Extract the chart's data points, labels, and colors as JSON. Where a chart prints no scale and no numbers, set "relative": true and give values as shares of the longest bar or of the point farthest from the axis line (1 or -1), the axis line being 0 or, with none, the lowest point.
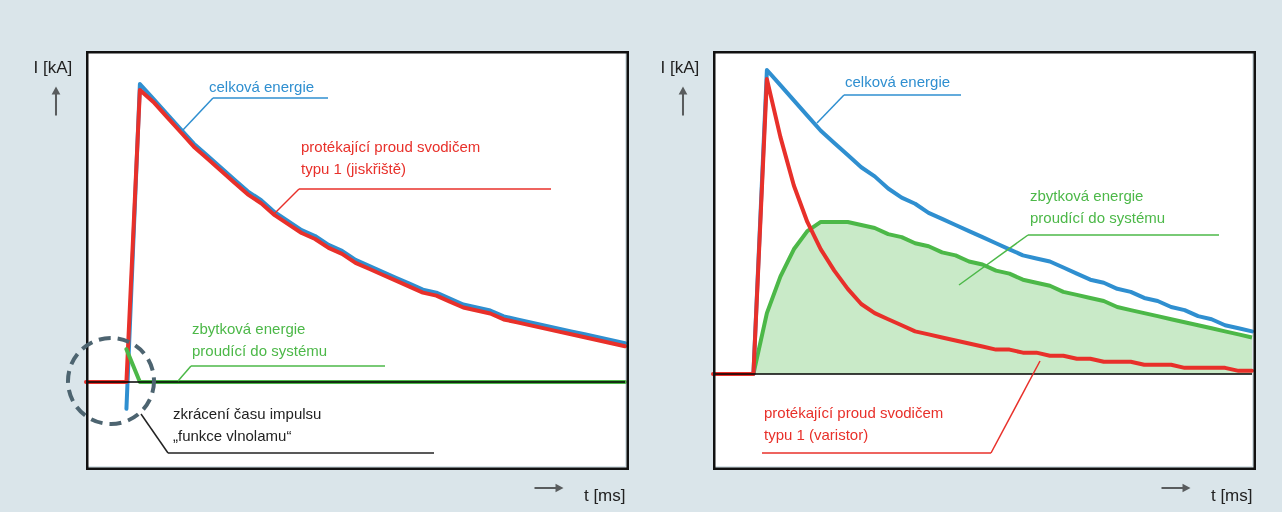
{
  "chart_data": [
    {
      "type": "line",
      "relative": true,
      "xlabel": "t [ms]",
      "ylabel": "I [kA]",
      "categories": [
        null,
        null,
        null,
        null,
        null,
        null,
        null,
        null,
        null,
        null,
        null,
        null,
        null,
        null,
        null,
        null,
        null,
        null,
        null,
        null,
        null,
        null,
        null,
        null,
        null,
        null,
        null,
        null,
        null,
        null,
        null,
        null,
        null,
        null,
        null,
        null,
        null,
        null,
        null,
        null,
        null
      ],
      "series": [
        {
          "name": "celková energie",
          "color": "#2f8fd0",
          "values": [
            null,
            null,
            null,
            -0.09,
            1.0,
            0.95,
            0.9,
            0.85,
            0.8,
            0.76,
            0.72,
            0.68,
            0.64,
            0.61,
            0.57,
            0.54,
            0.51,
            0.49,
            0.46,
            0.44,
            0.41,
            0.39,
            0.37,
            0.35,
            0.33,
            0.31,
            0.3,
            0.28,
            0.26,
            0.25,
            0.24,
            0.22,
            0.21,
            0.2,
            0.19,
            0.18,
            0.17,
            0.16,
            0.15,
            0.14,
            0.13
          ]
        },
        {
          "name": "protékající proud svodičem\ntypu 1 (jiskřiště)",
          "color": "#e8302a",
          "values": [
            0,
            0,
            0,
            0,
            0.98,
            0.94,
            0.89,
            0.84,
            0.79,
            0.75,
            0.71,
            0.67,
            0.63,
            0.6,
            0.56,
            0.53,
            0.5,
            0.48,
            0.45,
            0.43,
            0.4,
            0.38,
            0.36,
            0.34,
            0.32,
            0.3,
            0.29,
            0.27,
            0.25,
            0.24,
            0.23,
            0.21,
            0.2,
            0.19,
            0.18,
            0.17,
            0.16,
            0.15,
            0.14,
            0.13,
            0.12
          ]
        },
        {
          "name": "zbytková energie\nproudící do systému",
          "color": "#4cb848",
          "values": [
            null,
            null,
            null,
            0.11,
            0,
            0,
            0,
            0,
            0,
            0,
            0,
            0,
            0,
            0,
            0,
            0,
            0,
            0,
            0,
            0,
            0,
            0,
            0,
            0,
            0,
            0,
            0,
            0,
            0,
            0,
            0,
            0,
            0,
            0,
            0,
            0,
            0,
            0,
            0,
            0,
            0
          ]
        }
      ],
      "ref_lines": [
        {
          "axis": "y",
          "value": 0,
          "color": "#000000"
        }
      ],
      "annotations": [
        "zkrácení času impulsu\n„funkce vlnolamu“"
      ]
    },
    {
      "type": "line",
      "relative": true,
      "xlabel": "t [ms]",
      "ylabel": "I [kA]",
      "categories": [
        null,
        null,
        null,
        null,
        null,
        null,
        null,
        null,
        null,
        null,
        null,
        null,
        null,
        null,
        null,
        null,
        null,
        null,
        null,
        null,
        null,
        null,
        null,
        null,
        null,
        null,
        null,
        null,
        null,
        null,
        null,
        null,
        null,
        null,
        null,
        null,
        null,
        null,
        null,
        null,
        null
      ],
      "ref_lines": [
        {
          "axis": "y",
          "value": 0,
          "color": "#000000"
        }
      ],
      "series": [
        {
          "name": "zbytková energie\nproudící do systému",
          "type": "area",
          "color": "#4cb848",
          "values": [
            null,
            null,
            null,
            0,
            0.2,
            0.32,
            0.41,
            0.47,
            0.5,
            0.5,
            0.5,
            0.49,
            0.48,
            0.46,
            0.45,
            0.43,
            0.42,
            0.4,
            0.39,
            0.37,
            0.36,
            0.34,
            0.33,
            0.31,
            0.3,
            0.29,
            0.27,
            0.26,
            0.25,
            0.24,
            0.22,
            0.21,
            0.2,
            0.19,
            0.18,
            0.17,
            0.16,
            0.15,
            0.14,
            0.13,
            0.12
          ]
        },
        {
          "name": "celková energie",
          "color": "#2f8fd0",
          "values": [
            null,
            null,
            null,
            0,
            1.0,
            0.95,
            0.9,
            0.85,
            0.8,
            0.76,
            0.72,
            0.68,
            0.65,
            0.61,
            0.58,
            0.56,
            0.53,
            0.51,
            0.49,
            0.47,
            0.45,
            0.43,
            0.41,
            0.39,
            0.38,
            0.37,
            0.35,
            0.33,
            0.31,
            0.3,
            0.28,
            0.27,
            0.25,
            0.24,
            0.22,
            0.21,
            0.19,
            0.18,
            0.16,
            0.15,
            0.14
          ]
        },
        {
          "name": "protékající proud svodičem\ntypu 1 (varistor)",
          "color": "#e8302a",
          "values": [
            0,
            0,
            0,
            0,
            0.97,
            0.78,
            0.62,
            0.5,
            0.41,
            0.34,
            0.28,
            0.23,
            0.2,
            0.18,
            0.16,
            0.14,
            0.13,
            0.12,
            0.11,
            0.1,
            0.09,
            0.08,
            0.08,
            0.07,
            0.07,
            0.06,
            0.06,
            0.05,
            0.05,
            0.04,
            0.04,
            0.04,
            0.03,
            0.03,
            0.03,
            0.02,
            0.02,
            0.02,
            0.02,
            0.01,
            0.01
          ]
        }
      ]
    }
  ]
}
